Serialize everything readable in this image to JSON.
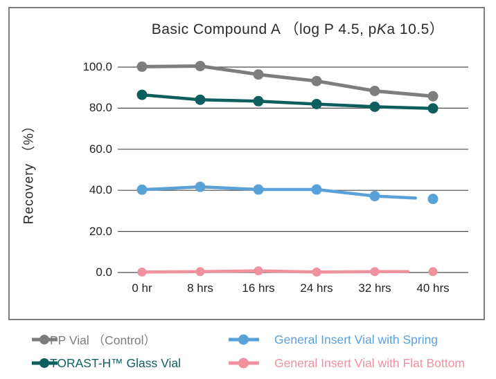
{
  "chart_data": {
    "type": "line",
    "title": "Basic Compound A （log P 4.5, pKa 10.5）",
    "title_parts": [
      "Basic Compound A （log P 4.5, p",
      "K",
      "a 10.5）"
    ],
    "ylabel": "Recovery （%）",
    "xlabel": "",
    "categories": [
      "0 hr",
      "8 hrs",
      "16 hrs",
      "24 hrs",
      "32 hrs",
      "40 hrs"
    ],
    "ytick_values": [
      0,
      20,
      40,
      60,
      80,
      100
    ],
    "ytick_labels": [
      "0.0",
      "20.0",
      "40.0",
      "60.0",
      "80.0",
      "100.0"
    ],
    "ylim": [
      0,
      110
    ],
    "grid": "horizontal-only",
    "legend_position": "bottom-two-columns",
    "series": [
      {
        "name": "PP Vial （Control）",
        "color": "#7d7d7d",
        "values": [
          100.2,
          100.5,
          96.4,
          93.2,
          88.4,
          85.8
        ],
        "line_to_last_point": true,
        "legend_column": "left"
      },
      {
        "name": "TORAST-H™ Glass Vial",
        "color": "#0d5f5d",
        "values": [
          86.5,
          84.1,
          83.4,
          82.0,
          80.7,
          79.9
        ],
        "line_to_last_point": true,
        "legend_column": "left"
      },
      {
        "name": "General Insert Vial with Spring",
        "color": "#5aa1d8",
        "values": [
          40.3,
          41.7,
          40.4,
          40.4,
          37.2,
          35.8
        ],
        "line_to_last_point": false,
        "line_stub_fraction": 0.7,
        "legend_column": "right"
      },
      {
        "name": "General Insert Vial with Flat Bottom",
        "color": "#f0919f",
        "values": [
          0.2,
          0.4,
          0.8,
          0.2,
          0.4,
          0.4
        ],
        "line_to_last_point": false,
        "line_stub_fraction": 0.57,
        "legend_column": "right"
      }
    ]
  }
}
